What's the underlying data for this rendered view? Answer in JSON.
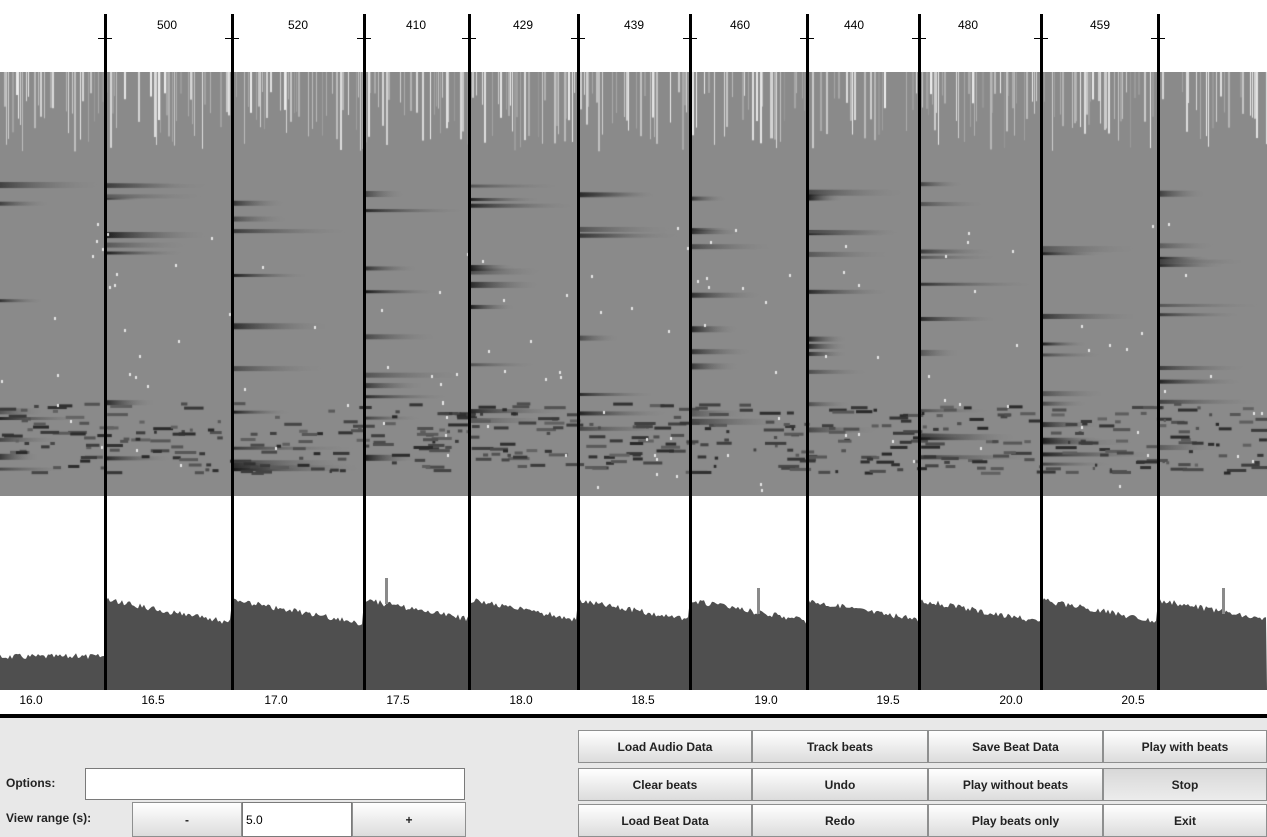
{
  "beat_intervals": [
    "500",
    "520",
    "410",
    "429",
    "439",
    "460",
    "440",
    "480",
    "459"
  ],
  "time_axis": {
    "ticks": [
      "16.0",
      "16.5",
      "17.0",
      "17.5",
      "18.0",
      "18.5",
      "19.0",
      "19.5",
      "20.0",
      "20.5"
    ]
  },
  "controls": {
    "options_label": "Options:",
    "options_value": "",
    "view_range_label": "View range (s):",
    "view_range_minus": "-",
    "view_range_value": "5.0",
    "view_range_plus": "+",
    "buttons": [
      [
        "Load Audio Data",
        "Track beats",
        "Save Beat Data",
        "Play with beats"
      ],
      [
        "Clear beats",
        "Undo",
        "Play without beats",
        "Stop"
      ],
      [
        "Load Beat Data",
        "Redo",
        "Play beats only",
        "Exit"
      ]
    ]
  },
  "colors": {
    "spectrogram_background": "#8a8a8a",
    "onset_fill": "#4f4f4f",
    "beat_line": "#000000"
  }
}
